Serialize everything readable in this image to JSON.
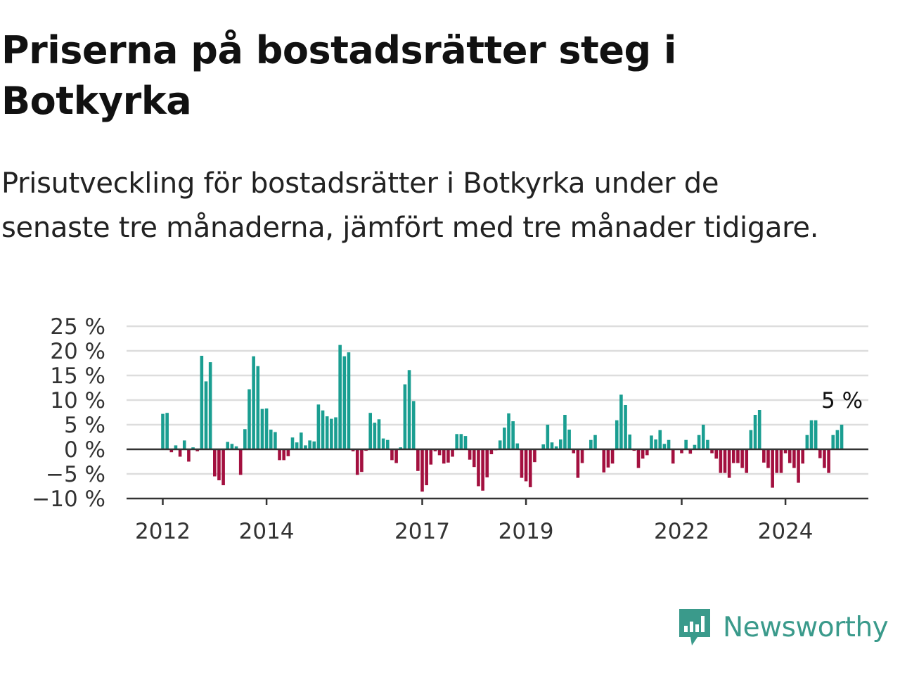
{
  "title": "Priserna på bostadsrätter steg i Botkyrka",
  "subtitle": "Prisutveckling för bostadsrätter i Botkyrka under de senaste tre månaderna, jämfört med tre månader tidigare.",
  "brand": "Newsworthy",
  "colors": {
    "positive": "#1a9e91",
    "negative": "#a3103f",
    "zero_line": "#333333",
    "grid": "#dddddd",
    "brand": "#3a9a8b"
  },
  "chart_data": {
    "type": "bar",
    "title": "",
    "xlabel": "",
    "ylabel": "",
    "y_unit": "%",
    "ylim": [
      -10,
      25
    ],
    "yticks": [
      25,
      20,
      15,
      10,
      5,
      0,
      -5,
      -10
    ],
    "ytick_labels": [
      "25 %",
      "20 %",
      "15 %",
      "10 %",
      "5 %",
      "0 %",
      "−5 %",
      "−10 %"
    ],
    "xticks": [
      "2012",
      "2014",
      "2017",
      "2019",
      "2022",
      "2024"
    ],
    "x_start": "2012-01",
    "grid": true,
    "last_value_label": "5 %",
    "values": [
      7.2,
      7.4,
      -0.6,
      0.8,
      -1.5,
      1.8,
      -2.5,
      0.4,
      -0.4,
      19.0,
      13.8,
      17.7,
      -5.5,
      -6.3,
      -7.3,
      1.5,
      1.1,
      0.6,
      -5.2,
      4.1,
      12.2,
      18.9,
      16.9,
      8.2,
      8.3,
      4.0,
      3.5,
      -2.2,
      -2.2,
      -1.4,
      2.4,
      1.4,
      3.4,
      0.8,
      1.8,
      1.6,
      9.1,
      7.9,
      6.7,
      6.2,
      6.5,
      21.2,
      18.9,
      19.7,
      -0.4,
      -5.2,
      -4.6,
      -0.3,
      7.4,
      5.4,
      6.1,
      2.2,
      1.9,
      -2.2,
      -2.8,
      0.4,
      13.2,
      16.1,
      9.8,
      -4.4,
      -8.6,
      -7.3,
      -3.1,
      -0.4,
      -1.2,
      -2.9,
      -2.7,
      -1.5,
      3.1,
      3.1,
      2.7,
      -2.1,
      -3.6,
      -7.5,
      -8.4,
      -5.7,
      -1.0,
      -0.2,
      1.8,
      4.4,
      7.3,
      5.7,
      1.2,
      -5.8,
      -6.5,
      -7.7,
      -2.6,
      0.1,
      1.0,
      5.0,
      1.4,
      0.6,
      2.0,
      7.0,
      4.0,
      -0.8,
      -5.8,
      -2.8,
      0.1,
      1.9,
      2.9,
      0.1,
      -4.7,
      -3.7,
      -2.9,
      5.9,
      11.1,
      9.0,
      3.0,
      -0.3,
      -3.8,
      -1.9,
      -1.2,
      2.8,
      2.0,
      3.9,
      1.1,
      1.9,
      -2.9,
      0.1,
      -0.8,
      1.9,
      -0.9,
      0.9,
      2.9,
      5.0,
      1.9,
      -0.8,
      -1.9,
      -4.8,
      -4.8,
      -5.8,
      -2.8,
      -2.8,
      -3.8,
      -4.8,
      3.9,
      7.0,
      8.0,
      -2.7,
      -3.8,
      -7.8,
      -4.8,
      -4.8,
      -0.8,
      -2.8,
      -3.8,
      -6.8,
      -2.9,
      2.9,
      5.9,
      5.9,
      -1.8,
      -3.8,
      -4.8,
      2.9,
      3.9,
      5.0
    ]
  }
}
